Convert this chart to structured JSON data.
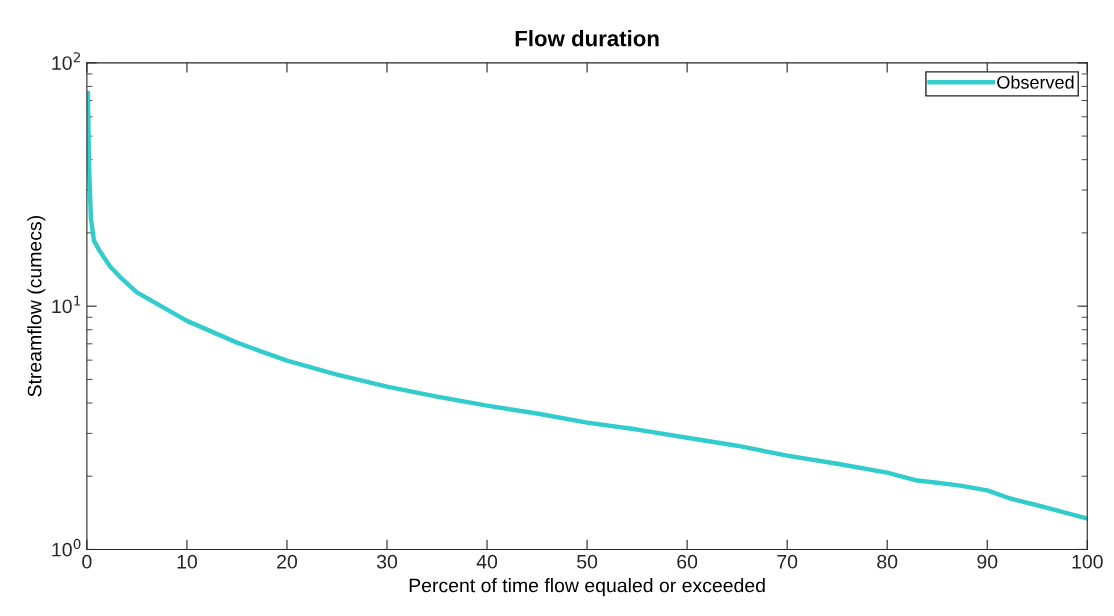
{
  "chart_data": {
    "type": "line",
    "title": "Flow duration",
    "xlabel": "Percent of time flow equaled or exceeded",
    "ylabel": "Streamflow (cumecs)",
    "series": [
      {
        "name": "Observed",
        "color": "#33cccc",
        "x": [
          0.1,
          0.2,
          0.3,
          0.4,
          0.7,
          1.3,
          2.3,
          3.3,
          5,
          10,
          15,
          20,
          25,
          30,
          35,
          40,
          45,
          50,
          55,
          60,
          65,
          70,
          75,
          80,
          83,
          85,
          87.3,
          90,
          92.3,
          95,
          100
        ],
        "values": [
          75,
          39.6,
          29.8,
          23,
          18.6,
          16.8,
          14.6,
          13.2,
          11.4,
          8.7,
          7.08,
          5.97,
          5.23,
          4.67,
          4.25,
          3.9,
          3.62,
          3.32,
          3.11,
          2.88,
          2.67,
          2.43,
          2.25,
          2.07,
          1.92,
          1.88,
          1.83,
          1.75,
          1.62,
          1.52,
          1.34
        ]
      }
    ],
    "log": "y",
    "xlim": [
      0,
      100
    ],
    "xticks": [
      0,
      10,
      20,
      30,
      40,
      50,
      60,
      70,
      80,
      90,
      100
    ],
    "ylim": [
      1,
      100
    ],
    "yticks": [
      {
        "value": 1,
        "label": "10$^{0}$"
      },
      {
        "value": 10,
        "label": "10$^{1}$"
      },
      {
        "value": 100,
        "label": "10$^{2}$"
      }
    ],
    "legend": "top right",
    "grid": false,
    "line_style": "solid",
    "marker": "none"
  }
}
